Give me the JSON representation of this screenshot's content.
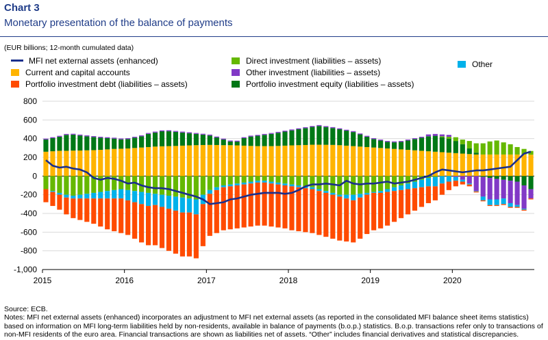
{
  "header": {
    "title": "Chart 3",
    "subtitle": "Monetary presentation of the balance of payments",
    "units": "(EUR billions; 12-month cumulated data)"
  },
  "legend": [
    {
      "key": "mfi",
      "label": "MFI net external assets (enhanced)",
      "kind": "line",
      "color": "#1a2f8c"
    },
    {
      "key": "cca",
      "label": "Current and capital accounts",
      "kind": "box",
      "color": "#ffb400"
    },
    {
      "key": "pid",
      "label": "Portfolio investment debt (liabilities – assets)",
      "kind": "box",
      "color": "#ff4b00"
    },
    {
      "key": "di",
      "label": "Direct investment (liabilities – assets)",
      "kind": "box",
      "color": "#65b800"
    },
    {
      "key": "oi",
      "label": "Other investment (liabilities – assets)",
      "kind": "box",
      "color": "#8139c6"
    },
    {
      "key": "pie",
      "label": "Portfolio investment equity (liabilities – assets)",
      "kind": "box",
      "color": "#007816"
    },
    {
      "key": "oth",
      "label": "Other",
      "kind": "box",
      "color": "#00b1ea"
    }
  ],
  "notes": {
    "source": "Source: ECB.",
    "text": "Notes: MFI net external assets (enhanced) incorporates an adjustment to MFI net external assets (as reported in the consolidated MFI balance sheet items statistics) based on information on MFI long-term liabilities held by non-residents, available in balance of payments (b.o.p.) statistics. B.o.p. transactions refer only to transactions of non-MFI residents of the euro area. Financial transactions are shown as liabilities net of assets. “Other” includes financial derivatives and statistical discrepancies."
  },
  "chart_data": {
    "type": "bar",
    "stacked": true,
    "x_labels": [
      "2015",
      "2016",
      "2017",
      "2018",
      "2019",
      "2020"
    ],
    "x_start": "2015-01",
    "ylim": [
      -1000,
      800
    ],
    "yticks": [
      -1000,
      -800,
      -600,
      -400,
      -200,
      0,
      200,
      400,
      600,
      800
    ],
    "ytick_labels": [
      "-1,000",
      "-800",
      "-600",
      "-400",
      "-200",
      "0",
      "200",
      "400",
      "600",
      "800"
    ],
    "grid": true,
    "series": [
      {
        "key": "cca",
        "name": "Current and capital accounts",
        "color": "#ffb400",
        "values": [
          260,
          265,
          270,
          270,
          272,
          273,
          275,
          277,
          280,
          285,
          290,
          292,
          295,
          300,
          305,
          310,
          315,
          318,
          320,
          322,
          325,
          328,
          330,
          332,
          333,
          332,
          330,
          330,
          328,
          325,
          322,
          320,
          320,
          320,
          322,
          325,
          328,
          330,
          332,
          335,
          335,
          334,
          333,
          330,
          325,
          320,
          315,
          310,
          305,
          300,
          295,
          290,
          285,
          280,
          275,
          270,
          265,
          260,
          255,
          250,
          245,
          240,
          235,
          230,
          230,
          230,
          230,
          230,
          230,
          230,
          230,
          228
        ]
      },
      {
        "key": "pie",
        "name": "Portfolio investment equity (liabilities – assets)",
        "color": "#007816",
        "values": [
          130,
          140,
          150,
          170,
          170,
          160,
          150,
          140,
          130,
          120,
          110,
          100,
          100,
          110,
          120,
          140,
          150,
          160,
          160,
          150,
          140,
          130,
          120,
          110,
          100,
          80,
          60,
          40,
          40,
          80,
          100,
          110,
          120,
          130,
          140,
          150,
          160,
          170,
          180,
          190,
          200,
          190,
          180,
          170,
          160,
          150,
          130,
          110,
          90,
          80,
          70,
          70,
          80,
          100,
          120,
          140,
          160,
          170,
          160,
          150,
          130,
          100,
          60,
          20,
          -10,
          -20,
          -30,
          -40,
          -50,
          -60,
          -100,
          -140
        ]
      },
      {
        "key": "di",
        "name": "Direct investment (liabilities – assets)",
        "color": "#65b800",
        "values": [
          -140,
          -160,
          -180,
          -200,
          -210,
          -200,
          -190,
          -180,
          -170,
          -160,
          -150,
          -140,
          -150,
          -160,
          -170,
          -180,
          -190,
          -200,
          -210,
          -220,
          -230,
          -240,
          -250,
          -200,
          -150,
          -120,
          -100,
          -90,
          -80,
          -70,
          -60,
          -50,
          -50,
          -60,
          -70,
          -80,
          -90,
          -100,
          -110,
          -120,
          -140,
          -160,
          -180,
          -200,
          -200,
          -200,
          -190,
          -180,
          -170,
          -160,
          -140,
          -120,
          -100,
          -80,
          -60,
          -40,
          -20,
          -10,
          10,
          20,
          40,
          50,
          80,
          100,
          120,
          140,
          150,
          130,
          110,
          80,
          60,
          40
        ]
      },
      {
        "key": "oi",
        "name": "Other investment (liabilities – assets)",
        "color": "#8139c6",
        "values": [
          10,
          10,
          10,
          10,
          10,
          10,
          10,
          10,
          10,
          10,
          10,
          10,
          10,
          10,
          10,
          10,
          10,
          10,
          10,
          10,
          10,
          10,
          10,
          10,
          10,
          10,
          10,
          10,
          10,
          10,
          10,
          10,
          10,
          10,
          10,
          10,
          10,
          10,
          10,
          10,
          10,
          10,
          10,
          10,
          10,
          10,
          10,
          10,
          10,
          10,
          10,
          10,
          10,
          10,
          10,
          10,
          20,
          20,
          20,
          20,
          -10,
          -40,
          -80,
          -160,
          -210,
          -230,
          -220,
          -200,
          -240,
          -250,
          -250,
          -100
        ]
      },
      {
        "key": "oth",
        "name": "Other",
        "color": "#00b1ea",
        "values": [
          0,
          -10,
          -20,
          -30,
          -30,
          -40,
          -50,
          -60,
          -70,
          -80,
          -90,
          -100,
          -110,
          -120,
          -130,
          -140,
          -120,
          -130,
          -140,
          -150,
          -160,
          -150,
          -160,
          -100,
          -40,
          -30,
          -20,
          -20,
          -20,
          -20,
          -20,
          -20,
          -20,
          -20,
          -20,
          -20,
          -20,
          -20,
          -20,
          -20,
          -20,
          -20,
          -20,
          -20,
          -40,
          -60,
          -40,
          -20,
          -10,
          -20,
          -30,
          -40,
          -50,
          -60,
          -70,
          -80,
          -90,
          -100,
          -80,
          -60,
          -40,
          -20,
          -10,
          -5,
          -40,
          -60,
          -60,
          -60,
          -40,
          -20,
          -10,
          0
        ]
      },
      {
        "key": "pid",
        "name": "Portfolio investment debt (liabilities – assets)",
        "color": "#ff4b00",
        "values": [
          -140,
          -150,
          -160,
          -180,
          -210,
          -230,
          -250,
          -270,
          -300,
          -330,
          -350,
          -370,
          -370,
          -390,
          -410,
          -420,
          -430,
          -440,
          -450,
          -460,
          -470,
          -470,
          -470,
          -450,
          -450,
          -460,
          -460,
          -460,
          -460,
          -460,
          -460,
          -460,
          -460,
          -460,
          -460,
          -460,
          -470,
          -470,
          -470,
          -470,
          -470,
          -470,
          -470,
          -470,
          -460,
          -450,
          -440,
          -420,
          -400,
          -380,
          -360,
          -330,
          -300,
          -270,
          -240,
          -210,
          -180,
          -150,
          -120,
          -90,
          -60,
          -30,
          -20,
          -10,
          -10,
          -10,
          -10,
          -10,
          -10,
          -10,
          -10,
          -10
        ]
      }
    ],
    "line": {
      "key": "mfi",
      "name": "MFI net external assets (enhanced)",
      "color": "#1a2f8c",
      "values": [
        170,
        110,
        90,
        100,
        80,
        70,
        40,
        -20,
        -40,
        -20,
        -30,
        -50,
        -80,
        -70,
        -100,
        -120,
        -130,
        -130,
        -140,
        -160,
        -180,
        -200,
        -220,
        -250,
        -300,
        -290,
        -280,
        -250,
        -240,
        -220,
        -200,
        -190,
        -180,
        -180,
        -180,
        -190,
        -180,
        -150,
        -110,
        -90,
        -90,
        -80,
        -90,
        -100,
        -50,
        -80,
        -90,
        -80,
        -80,
        -70,
        -60,
        -80,
        -70,
        -60,
        -40,
        -20,
        0,
        40,
        70,
        60,
        50,
        40,
        50,
        60,
        60,
        70,
        80,
        90,
        100,
        170,
        240,
        260
      ]
    }
  }
}
